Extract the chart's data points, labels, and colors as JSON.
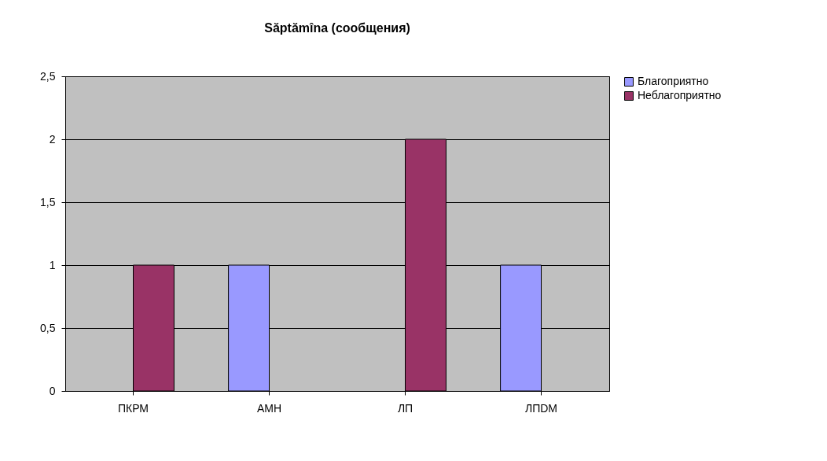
{
  "chart_data": {
    "type": "bar",
    "title": "Săptămîna  (сообщения)",
    "categories": [
      "ПКРМ",
      "АМН",
      "ЛП",
      "ЛПDM"
    ],
    "series": [
      {
        "name": "Благоприятно",
        "color": "#9999ff",
        "values": [
          null,
          1,
          null,
          1
        ]
      },
      {
        "name": "Неблагоприятно",
        "color": "#993366",
        "values": [
          1,
          null,
          2,
          null
        ]
      }
    ],
    "ylim": [
      0,
      2.5
    ],
    "yticks": [
      0,
      {
        "value": 0.5,
        "label": "0,5"
      },
      1,
      {
        "value": 1.5,
        "label": "1,5"
      },
      2,
      {
        "value": 2.5,
        "label": "2,5"
      }
    ],
    "grid": "y",
    "legend": "right"
  }
}
